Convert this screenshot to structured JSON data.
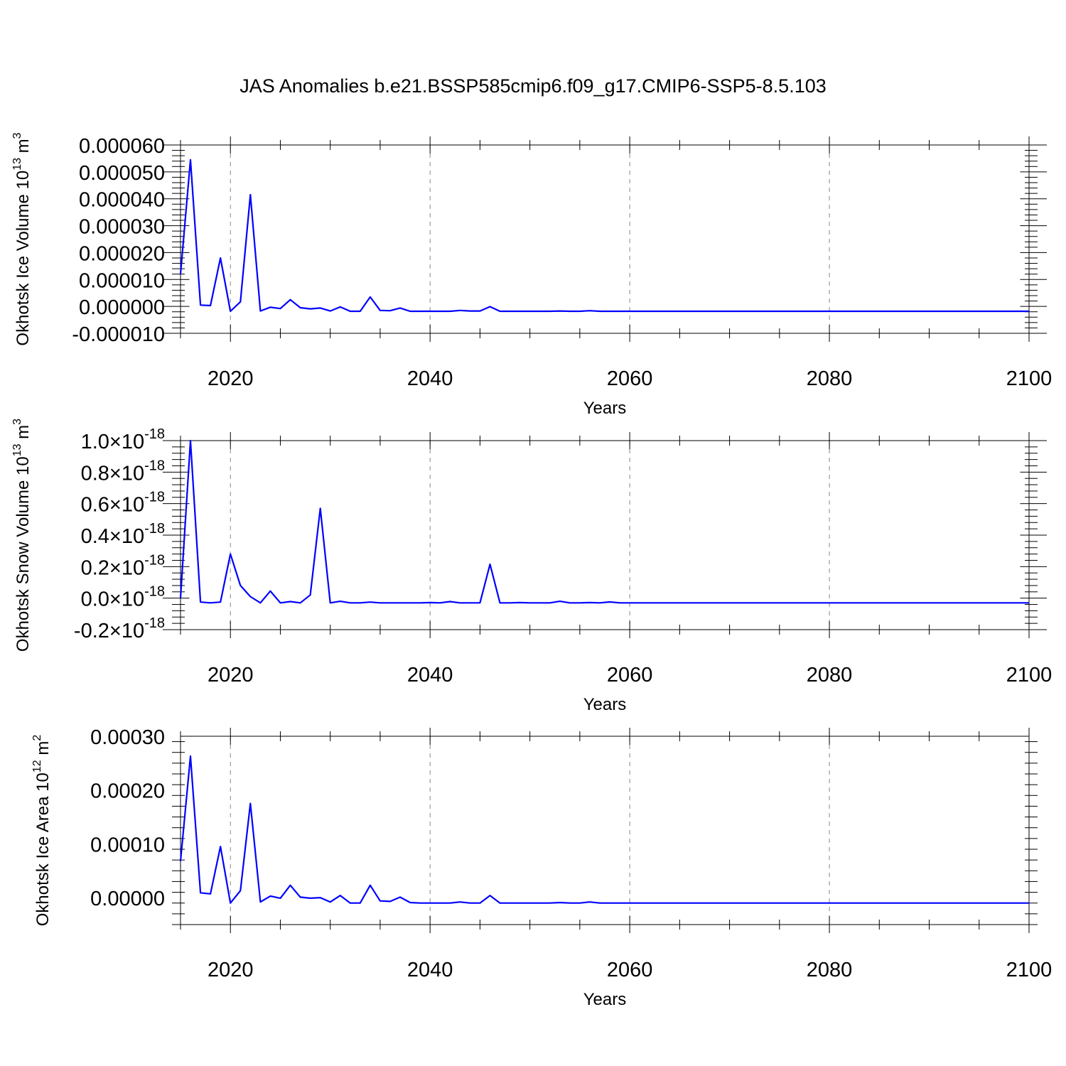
{
  "figure": {
    "title": "JAS Anomalies b.e21.BSSP585cmip6.f09_g17.CMIP6-SSP5-8.5.103",
    "line_color": "#0000ff"
  },
  "chart_data": [
    {
      "type": "line",
      "ylabel": "Okhotsk Ice Volume 10",
      "ylabel_exponent": "13",
      "ylabel_unit": " m",
      "ylabel_unit_exponent": "3",
      "xlabel": "Years",
      "xlim": [
        2015,
        2100
      ],
      "ylim": [
        -1e-05,
        6e-05
      ],
      "x_ticks": [
        2020,
        2040,
        2060,
        2080,
        2100
      ],
      "x_tick_labels": [
        "2020",
        "2040",
        "2060",
        "2080",
        "2100"
      ],
      "y_ticks": [
        -1e-05,
        0.0,
        1e-05,
        2e-05,
        3e-05,
        4e-05,
        5e-05,
        6e-05
      ],
      "y_tick_labels": [
        "-0.000010",
        "0.000000",
        "0.000010",
        "0.000020",
        "0.000030",
        "0.000040",
        "0.000050",
        "0.000060"
      ],
      "y_tick_exponent": "",
      "grid": "vertical dashed at major x ticks",
      "x": [
        2015,
        2016,
        2017,
        2018,
        2019,
        2020,
        2021,
        2022,
        2023,
        2024,
        2025,
        2026,
        2027,
        2028,
        2029,
        2030,
        2031,
        2032,
        2033,
        2034,
        2035,
        2036,
        2037,
        2038,
        2039,
        2040,
        2041,
        2042,
        2043,
        2044,
        2045,
        2046,
        2047,
        2048,
        2049,
        2050,
        2051,
        2052,
        2053,
        2054,
        2055,
        2056,
        2057,
        2058,
        2060,
        2070,
        2080,
        2090,
        2100
      ],
      "y": [
        1.2e-05,
        5.45e-05,
        5e-07,
        3e-07,
        1.8e-05,
        -1.8e-06,
        1.7e-06,
        4.15e-05,
        -1.7e-06,
        -3e-07,
        -8e-07,
        2.5e-06,
        -5e-07,
        -9e-07,
        -6e-07,
        -1.7e-06,
        -2e-07,
        -1.8e-06,
        -1.8e-06,
        3.5e-06,
        -1.5e-06,
        -1.6e-06,
        -6e-07,
        -1.8e-06,
        -1.8e-06,
        -1.8e-06,
        -1.8e-06,
        -1.8e-06,
        -1.5e-06,
        -1.7e-06,
        -1.7e-06,
        -1e-07,
        -1.8e-06,
        -1.8e-06,
        -1.8e-06,
        -1.8e-06,
        -1.8e-06,
        -1.8e-06,
        -1.7e-06,
        -1.8e-06,
        -1.8e-06,
        -1.6e-06,
        -1.8e-06,
        -1.8e-06,
        -1.8e-06,
        -1.8e-06,
        -1.8e-06,
        -1.8e-06,
        -1.8e-06
      ]
    },
    {
      "type": "line",
      "ylabel": "Okhotsk Snow Volume 10",
      "ylabel_exponent": "13",
      "ylabel_unit": " m",
      "ylabel_unit_exponent": "3",
      "xlabel": "Years",
      "xlim": [
        2015,
        2100
      ],
      "ylim": [
        -2e-19,
        1e-18
      ],
      "x_ticks": [
        2020,
        2040,
        2060,
        2080,
        2100
      ],
      "x_tick_labels": [
        "2020",
        "2040",
        "2060",
        "2080",
        "2100"
      ],
      "y_ticks": [
        -2e-19,
        0.0,
        2e-19,
        4e-19,
        6e-19,
        8e-19,
        1e-18
      ],
      "y_tick_labels": [
        "-0.2",
        "0.0",
        "0.2",
        "0.4",
        "0.6",
        "0.8",
        "1.0"
      ],
      "y_tick_times": "×10",
      "y_tick_exponent": "-18",
      "grid": "vertical dashed at major x ticks",
      "x": [
        2015,
        2016,
        2017,
        2018,
        2019,
        2020,
        2021,
        2022,
        2023,
        2024,
        2025,
        2026,
        2027,
        2028,
        2029,
        2030,
        2031,
        2032,
        2033,
        2034,
        2035,
        2036,
        2037,
        2038,
        2039,
        2040,
        2041,
        2042,
        2043,
        2044,
        2045,
        2046,
        2047,
        2048,
        2049,
        2050,
        2051,
        2052,
        2053,
        2054,
        2055,
        2056,
        2057,
        2058,
        2059,
        2060,
        2070,
        2080,
        2090,
        2100
      ],
      "y": [
        0.0,
        1e-18,
        -2.5e-20,
        -3e-20,
        -2.5e-20,
        2.8e-19,
        8e-20,
        1e-20,
        -3e-20,
        4.5e-20,
        -3e-20,
        -2.2e-20,
        -3e-20,
        2e-20,
        5.7e-19,
        -3e-20,
        -2e-20,
        -3e-20,
        -3e-20,
        -2.5e-20,
        -3e-20,
        -3e-20,
        -3e-20,
        -3e-20,
        -3e-20,
        -2.8e-20,
        -3e-20,
        -2.2e-20,
        -3e-20,
        -3e-20,
        -3e-20,
        2.15e-19,
        -3e-20,
        -3e-20,
        -2.8e-20,
        -3e-20,
        -3e-20,
        -3e-20,
        -2e-20,
        -3e-20,
        -3e-20,
        -2.8e-20,
        -3e-20,
        -2.4e-20,
        -3e-20,
        -3e-20,
        -3e-20,
        -3e-20,
        -3e-20,
        -3e-20
      ]
    },
    {
      "type": "line",
      "ylabel": "Okhotsk Ice Area 10",
      "ylabel_exponent": "12",
      "ylabel_unit": " m",
      "ylabel_unit_exponent": "2",
      "xlabel": "Years",
      "xlim": [
        2015,
        2100
      ],
      "ylim": [
        -5e-05,
        0.0003
      ],
      "x_ticks": [
        2020,
        2040,
        2060,
        2080,
        2100
      ],
      "x_tick_labels": [
        "2020",
        "2040",
        "2060",
        "2080",
        "2100"
      ],
      "y_ticks": [
        0.0,
        0.0001,
        0.0002,
        0.0003
      ],
      "y_tick_labels": [
        "0.00000",
        "0.00010",
        "0.00020",
        "0.00030"
      ],
      "y_tick_exponent": "",
      "grid": "vertical dashed at major x ticks",
      "x": [
        2015,
        2016,
        2017,
        2018,
        2019,
        2020,
        2021,
        2022,
        2023,
        2024,
        2025,
        2026,
        2027,
        2028,
        2029,
        2030,
        2031,
        2032,
        2033,
        2034,
        2035,
        2036,
        2037,
        2038,
        2039,
        2040,
        2041,
        2042,
        2043,
        2044,
        2045,
        2046,
        2047,
        2048,
        2049,
        2050,
        2051,
        2052,
        2053,
        2054,
        2055,
        2056,
        2057,
        2058,
        2060,
        2070,
        2080,
        2090,
        2100
      ],
      "y": [
        6.8e-05,
        0.000263,
        9e-06,
        7e-06,
        9.5e-05,
        -1e-05,
        1.3e-05,
        0.000175,
        -8e-06,
        3e-06,
        -1e-06,
        2.3e-05,
        1e-06,
        -1e-06,
        0.0,
        -8e-06,
        4e-06,
        -1e-05,
        -1e-05,
        2.3e-05,
        -6e-06,
        -7e-06,
        1e-06,
        -9e-06,
        -1e-05,
        -1e-05,
        -1e-05,
        -1e-05,
        -8e-06,
        -1e-05,
        -1e-05,
        4e-06,
        -1e-05,
        -1e-05,
        -1e-05,
        -1e-05,
        -1e-05,
        -1e-05,
        -9e-06,
        -1e-05,
        -1e-05,
        -8e-06,
        -1e-05,
        -1e-05,
        -1e-05,
        -1e-05,
        -1e-05,
        -1e-05,
        -1e-05
      ]
    }
  ]
}
